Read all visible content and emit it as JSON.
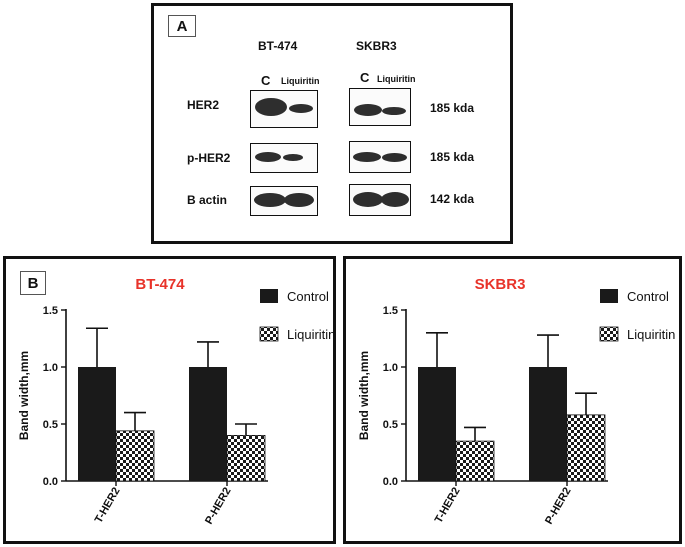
{
  "panel_a": {
    "label": "A",
    "cell_lines": [
      "BT-474",
      "SKBR3"
    ],
    "conditions": [
      "C",
      "Liquiritin"
    ],
    "rows": [
      {
        "protein": "HER2",
        "size": "185 kda"
      },
      {
        "protein": "p-HER2",
        "size": "185 kda"
      },
      {
        "protein": "B actin",
        "size": "142 kda"
      }
    ]
  },
  "panel_b": {
    "label": "B"
  },
  "colors": {
    "title_red": "#e8332a",
    "control_fill": "#1a1a1a"
  },
  "chart_data": [
    {
      "type": "bar",
      "title": "BT-474",
      "ylabel": "Band width,mm",
      "xlabel": "",
      "categories": [
        "T-HER2",
        "P-HER2"
      ],
      "ylim": [
        0,
        1.5
      ],
      "yticks": [
        "0.0",
        "0.5",
        "1.0",
        "1.5"
      ],
      "legend_position": "top-right",
      "series": [
        {
          "name": "Control",
          "values": [
            1.0,
            1.0
          ],
          "errors": [
            0.34,
            0.22
          ]
        },
        {
          "name": "Liquiritin",
          "values": [
            0.44,
            0.4
          ],
          "errors": [
            0.16,
            0.1
          ]
        }
      ]
    },
    {
      "type": "bar",
      "title": "SKBR3",
      "ylabel": "Band width,mm",
      "xlabel": "",
      "categories": [
        "T-HER2",
        "P-HER2"
      ],
      "ylim": [
        0,
        1.5
      ],
      "yticks": [
        "0.0",
        "0.5",
        "1.0",
        "1.5"
      ],
      "legend_position": "top-right",
      "series": [
        {
          "name": "Control",
          "values": [
            1.0,
            1.0
          ],
          "errors": [
            0.3,
            0.28
          ]
        },
        {
          "name": "Liquiritin",
          "values": [
            0.35,
            0.58
          ],
          "errors": [
            0.12,
            0.19
          ]
        }
      ]
    }
  ]
}
